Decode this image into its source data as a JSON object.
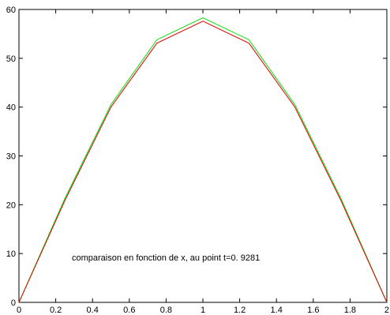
{
  "chart_data": {
    "type": "line",
    "title": "",
    "xlabel": "",
    "ylabel": "",
    "xlim": [
      0,
      2
    ],
    "ylim": [
      0,
      60
    ],
    "xticks": [
      "0",
      "0.2",
      "0.4",
      "0.6",
      "0.8",
      "1",
      "1.2",
      "1.4",
      "1.6",
      "1.8",
      "2"
    ],
    "yticks": [
      "0",
      "10",
      "20",
      "30",
      "40",
      "50",
      "60"
    ],
    "grid": false,
    "legend": null,
    "annotation": "comparaison en fonction de x, au point t=0. 9281",
    "series": [
      {
        "color": "#00e000",
        "x": [
          0,
          0.25,
          0.5,
          0.75,
          1.0,
          1.25,
          1.5,
          1.75,
          2.0
        ],
        "y": [
          0,
          21.3,
          40.5,
          53.8,
          58.3,
          53.8,
          40.5,
          21.3,
          0
        ]
      },
      {
        "color": "#e00000",
        "x": [
          0,
          0.25,
          0.5,
          0.75,
          1.0,
          1.25,
          1.5,
          1.75,
          2.0
        ],
        "y": [
          0,
          20.9,
          40.0,
          53.1,
          57.6,
          53.1,
          40.0,
          20.9,
          0
        ]
      }
    ]
  }
}
